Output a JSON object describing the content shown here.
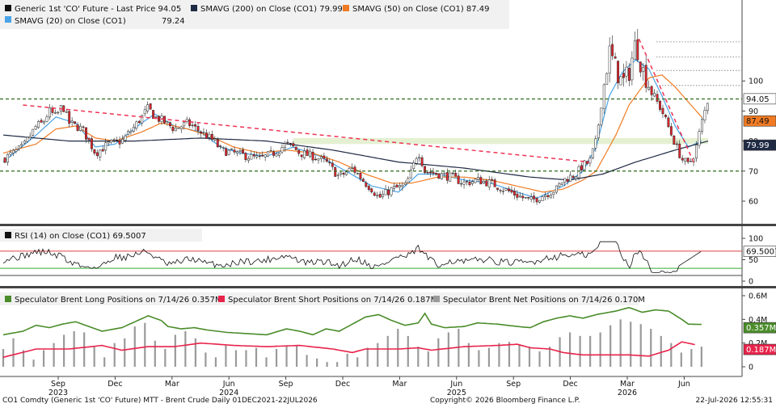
{
  "colors": {
    "price": "#111111",
    "sma200": "#1f2a44",
    "sma50": "#f07b24",
    "sma20": "#49a3e6",
    "trend_red": "#ee3355",
    "level_green": "#2d6b1a",
    "band_fill": "#e4f0d2",
    "rsi": "#111111",
    "rsi_upper": "#e04040",
    "rsi_lower": "#33aa33",
    "long": "#4a8c2a",
    "short": "#e8234a",
    "net": "#9a9a9a",
    "tag_price": "#ffffff",
    "tag_sma50": "#f07b24",
    "tag_sma200": "#1f2a44",
    "tag_rsi": "#ffffff",
    "tag_long": "#4a8c2a",
    "tag_short": "#e8234a"
  },
  "legend": {
    "price": "Generic 1st 'CO' Future - Last Price 94.05",
    "sma200": "SMAVG (200)  on Close (CO1) 79.99",
    "sma50": "SMAVG (50)  on Close (CO1) 87.49",
    "sma20_name": "SMAVG (20)  on Close (CO1)",
    "sma20_value": "79.24",
    "rsi": "RSI (14)  on Close (CO1) 69.5007",
    "long": "Speculator Brent Long Positions on 7/14/26 0.357M",
    "short": "Speculator Brent Short Positions on 7/14/26 0.187M",
    "net": "Speculator Brent Net Positions on 7/14/26 0.170M"
  },
  "tags": {
    "price": "94.05",
    "sma50": "87.49",
    "sma200": "79.99",
    "rsi": "69.5007",
    "long": "0.357M",
    "short": "0.187M"
  },
  "footer": {
    "left": "CO1 Comdty (Generic 1st 'CO' Future) MTT - Brent Crude Daily 01DEC2021-22JUL2026",
    "center": "Copyright© 2026 Bloomberg Finance L.P.",
    "right": "22-Jul-2026 12:55:31"
  },
  "chart_data": [
    {
      "panel": "price",
      "type": "candlestick",
      "y_ticks": [
        "100",
        "90",
        "80",
        "70",
        "60"
      ],
      "ylim": [
        53,
        117
      ],
      "x_ticks": [
        {
          "month": "Sep",
          "year": "2023"
        },
        {
          "month": "Dec",
          "year": ""
        },
        {
          "month": "Mar",
          "year": ""
        },
        {
          "month": "Jun",
          "year": "2024"
        },
        {
          "month": "Sep",
          "year": ""
        },
        {
          "month": "Dec",
          "year": ""
        },
        {
          "month": "Mar",
          "year": ""
        },
        {
          "month": "Jun",
          "year": "2025"
        },
        {
          "month": "Sep",
          "year": ""
        },
        {
          "month": "Dec",
          "year": ""
        },
        {
          "month": "Mar",
          "year": "2026"
        },
        {
          "month": "Jun",
          "year": ""
        }
      ],
      "price_anchors": [
        [
          0,
          74
        ],
        [
          6,
          78
        ],
        [
          10,
          85
        ],
        [
          12,
          86
        ],
        [
          14,
          90
        ],
        [
          16,
          88
        ],
        [
          18,
          92
        ],
        [
          20,
          86
        ],
        [
          24,
          84
        ],
        [
          28,
          76
        ],
        [
          32,
          79
        ],
        [
          36,
          80
        ],
        [
          40,
          85
        ],
        [
          44,
          91
        ],
        [
          46,
          88
        ],
        [
          48,
          87
        ],
        [
          52,
          84
        ],
        [
          56,
          86
        ],
        [
          60,
          83
        ],
        [
          64,
          80
        ],
        [
          66,
          77
        ],
        [
          70,
          76
        ],
        [
          74,
          75
        ],
        [
          78,
          74
        ],
        [
          82,
          76
        ],
        [
          86,
          79
        ],
        [
          88,
          78
        ],
        [
          90,
          76
        ],
        [
          94,
          75
        ],
        [
          98,
          73
        ],
        [
          102,
          68
        ],
        [
          106,
          71
        ],
        [
          110,
          66
        ],
        [
          112,
          64
        ],
        [
          114,
          61
        ],
        [
          118,
          64
        ],
        [
          122,
          65
        ],
        [
          124,
          70
        ],
        [
          126,
          77
        ],
        [
          128,
          70
        ],
        [
          132,
          69
        ],
        [
          136,
          68
        ],
        [
          140,
          66
        ],
        [
          144,
          67
        ],
        [
          148,
          66
        ],
        [
          152,
          64
        ],
        [
          156,
          62
        ],
        [
          158,
          61
        ],
        [
          160,
          60
        ],
        [
          164,
          62
        ],
        [
          168,
          64
        ],
        [
          170,
          67
        ],
        [
          174,
          69
        ],
        [
          176,
          72
        ],
        [
          178,
          73
        ],
        [
          180,
          80
        ],
        [
          182,
          96
        ],
        [
          184,
          110
        ],
        [
          186,
          104
        ],
        [
          188,
          99
        ],
        [
          190,
          103
        ],
        [
          192,
          113
        ],
        [
          194,
          104
        ],
        [
          196,
          99
        ],
        [
          198,
          94
        ],
        [
          200,
          90
        ],
        [
          204,
          79
        ],
        [
          206,
          74
        ],
        [
          208,
          72
        ],
        [
          210,
          76
        ],
        [
          212,
          86
        ],
        [
          214,
          94
        ]
      ],
      "series": [
        {
          "name": "SMAVG (20)",
          "values": [
            [
              0,
              73
            ],
            [
              10,
              82
            ],
            [
              16,
              88
            ],
            [
              22,
              86
            ],
            [
              28,
              78
            ],
            [
              34,
              79
            ],
            [
              42,
              86
            ],
            [
              46,
              89
            ],
            [
              52,
              85
            ],
            [
              60,
              83
            ],
            [
              66,
              78
            ],
            [
              72,
              76
            ],
            [
              80,
              75
            ],
            [
              88,
              78
            ],
            [
              96,
              75
            ],
            [
              104,
              70
            ],
            [
              112,
              65
            ],
            [
              120,
              63
            ],
            [
              126,
              69
            ],
            [
              132,
              69
            ],
            [
              140,
              67
            ],
            [
              148,
              66
            ],
            [
              156,
              63
            ],
            [
              162,
              61
            ],
            [
              170,
              65
            ],
            [
              176,
              70
            ],
            [
              180,
              78
            ],
            [
              184,
              95
            ],
            [
              188,
              103
            ],
            [
              192,
              107
            ],
            [
              196,
              104
            ],
            [
              200,
              95
            ],
            [
              204,
              85
            ],
            [
              208,
              78
            ],
            [
              212,
              80
            ]
          ]
        },
        {
          "name": "SMAVG (50)",
          "values": [
            [
              0,
              76
            ],
            [
              10,
              79
            ],
            [
              16,
              84
            ],
            [
              22,
              85
            ],
            [
              28,
              81
            ],
            [
              34,
              80
            ],
            [
              42,
              83
            ],
            [
              48,
              86
            ],
            [
              56,
              84
            ],
            [
              62,
              82
            ],
            [
              70,
              78
            ],
            [
              78,
              76
            ],
            [
              86,
              77
            ],
            [
              94,
              76
            ],
            [
              102,
              73
            ],
            [
              110,
              69
            ],
            [
              118,
              66
            ],
            [
              124,
              66
            ],
            [
              132,
              68
            ],
            [
              140,
              68
            ],
            [
              148,
              67
            ],
            [
              156,
              65
            ],
            [
              164,
              63
            ],
            [
              170,
              64
            ],
            [
              176,
              67
            ],
            [
              180,
              70
            ],
            [
              186,
              82
            ],
            [
              190,
              92
            ],
            [
              196,
              101
            ],
            [
              200,
              102
            ],
            [
              204,
              98
            ],
            [
              208,
              93
            ],
            [
              212,
              88
            ]
          ]
        },
        {
          "name": "SMAVG (200)",
          "values": [
            [
              0,
              82
            ],
            [
              20,
              80
            ],
            [
              40,
              80
            ],
            [
              60,
              81
            ],
            [
              80,
              80
            ],
            [
              100,
              77
            ],
            [
              120,
              73
            ],
            [
              140,
              71
            ],
            [
              160,
              68
            ],
            [
              172,
              67
            ],
            [
              182,
              69
            ],
            [
              192,
              73
            ],
            [
              204,
              77
            ],
            [
              214,
              80
            ]
          ]
        }
      ],
      "trendlines": [
        {
          "kind": "resistance",
          "from": [
            6,
            92
          ],
          "to": [
            178,
            73
          ]
        },
        {
          "kind": "breakdown",
          "from": [
            193,
            114
          ],
          "to": [
            210,
            72
          ]
        }
      ],
      "levels": [
        94,
        70
      ],
      "zone": [
        79,
        81
      ],
      "dotted_levels": [
        113,
        108,
        103.5,
        98.5
      ]
    },
    {
      "panel": "rsi",
      "type": "line",
      "y_ticks": [
        "100",
        "50",
        "0"
      ],
      "ylim": [
        0,
        100
      ],
      "bands": [
        70,
        30
      ],
      "last_value": 69.5007
    },
    {
      "panel": "positions",
      "type": "line+bar",
      "y_ticks": [
        "0.6M",
        "0.4M",
        "0.2M",
        "0"
      ],
      "ylim": [
        0,
        0.6
      ],
      "series": [
        {
          "name": "Speculator Brent Long Positions",
          "values": [
            [
              0,
              0.27
            ],
            [
              6,
              0.3
            ],
            [
              10,
              0.35
            ],
            [
              14,
              0.33
            ],
            [
              18,
              0.36
            ],
            [
              22,
              0.38
            ],
            [
              26,
              0.34
            ],
            [
              30,
              0.3
            ],
            [
              36,
              0.33
            ],
            [
              40,
              0.38
            ],
            [
              44,
              0.43
            ],
            [
              48,
              0.39
            ],
            [
              50,
              0.34
            ],
            [
              54,
              0.32
            ],
            [
              58,
              0.33
            ],
            [
              62,
              0.31
            ],
            [
              68,
              0.29
            ],
            [
              74,
              0.28
            ],
            [
              80,
              0.27
            ],
            [
              86,
              0.32
            ],
            [
              90,
              0.3
            ],
            [
              94,
              0.27
            ],
            [
              98,
              0.32
            ],
            [
              102,
              0.3
            ],
            [
              106,
              0.36
            ],
            [
              110,
              0.42
            ],
            [
              114,
              0.44
            ],
            [
              118,
              0.39
            ],
            [
              122,
              0.35
            ],
            [
              126,
              0.37
            ],
            [
              128,
              0.45
            ],
            [
              130,
              0.36
            ],
            [
              134,
              0.33
            ],
            [
              140,
              0.34
            ],
            [
              144,
              0.37
            ],
            [
              150,
              0.36
            ],
            [
              156,
              0.34
            ],
            [
              160,
              0.33
            ],
            [
              164,
              0.38
            ],
            [
              168,
              0.41
            ],
            [
              172,
              0.43
            ],
            [
              176,
              0.41
            ],
            [
              180,
              0.44
            ],
            [
              186,
              0.47
            ],
            [
              190,
              0.5
            ],
            [
              194,
              0.46
            ],
            [
              198,
              0.48
            ],
            [
              202,
              0.47
            ],
            [
              206,
              0.4
            ],
            [
              208,
              0.36
            ],
            [
              212,
              0.357
            ]
          ]
        },
        {
          "name": "Speculator Brent Short Positions",
          "values": [
            [
              0,
              0.08
            ],
            [
              10,
              0.15
            ],
            [
              20,
              0.15
            ],
            [
              30,
              0.18
            ],
            [
              36,
              0.14
            ],
            [
              44,
              0.17
            ],
            [
              52,
              0.17
            ],
            [
              60,
              0.2
            ],
            [
              70,
              0.18
            ],
            [
              80,
              0.17
            ],
            [
              90,
              0.18
            ],
            [
              100,
              0.15
            ],
            [
              106,
              0.12
            ],
            [
              110,
              0.15
            ],
            [
              114,
              0.15
            ],
            [
              120,
              0.15
            ],
            [
              126,
              0.16
            ],
            [
              130,
              0.14
            ],
            [
              140,
              0.17
            ],
            [
              150,
              0.18
            ],
            [
              156,
              0.19
            ],
            [
              160,
              0.16
            ],
            [
              166,
              0.15
            ],
            [
              170,
              0.12
            ],
            [
              176,
              0.1
            ],
            [
              182,
              0.1
            ],
            [
              190,
              0.1
            ],
            [
              196,
              0.09
            ],
            [
              202,
              0.14
            ],
            [
              206,
              0.21
            ],
            [
              210,
              0.187
            ]
          ]
        }
      ],
      "net_bars": [
        0.15,
        0.24,
        0.14,
        0.06,
        0.14,
        0.2,
        0.27,
        0.3,
        0.29,
        0.17,
        0.08,
        0.2,
        0.24,
        0.34,
        0.37,
        0.22,
        0.15,
        0.27,
        0.3,
        0.24,
        0.12,
        0.08,
        0.18,
        0.14,
        0.14,
        0.16,
        0.08,
        0.15,
        0.18,
        0.18,
        0.1,
        0.07,
        0.04,
        0.04,
        0.11,
        0.08,
        0.16,
        0.2,
        0.26,
        0.32,
        0.26,
        0.17,
        0.13,
        0.24,
        0.29,
        0.32,
        0.2,
        0.14,
        0.16,
        0.2,
        0.21,
        0.19,
        0.17,
        0.13,
        0.17,
        0.25,
        0.29,
        0.26,
        0.26,
        0.29,
        0.35,
        0.4,
        0.38,
        0.36,
        0.32,
        0.26,
        0.2,
        0.12,
        0.15,
        0.17
      ]
    }
  ]
}
